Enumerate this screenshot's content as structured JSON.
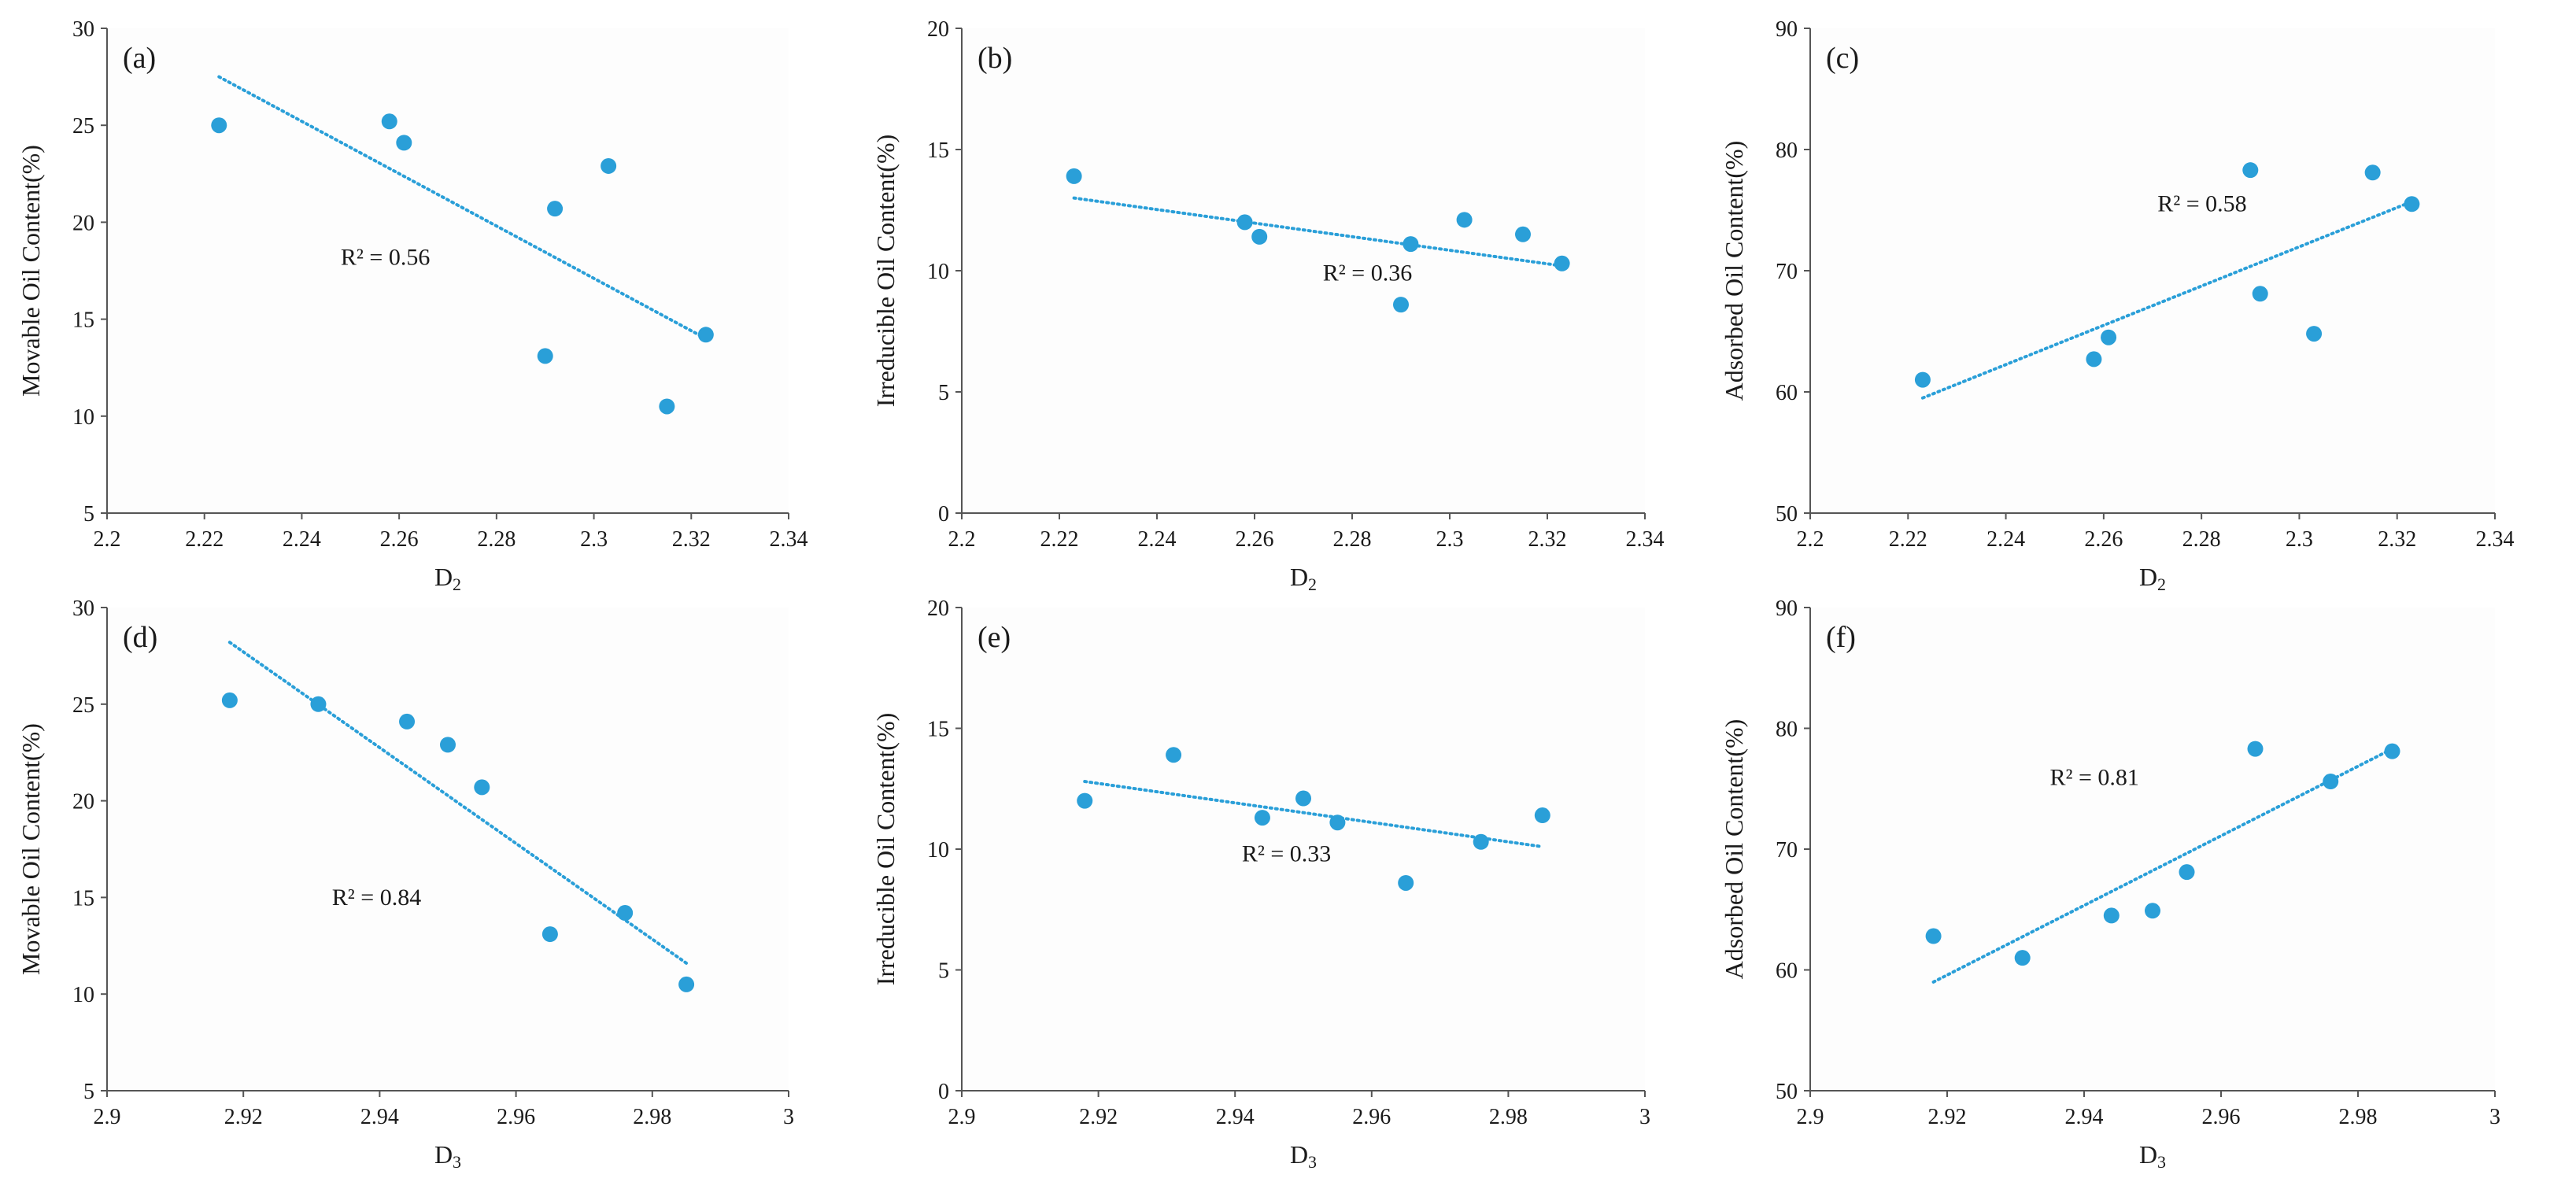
{
  "chart_data": [
    {
      "type": "scatter",
      "panel_label": "(a)",
      "xlabel": "D",
      "xlabel_subscript": "2",
      "ylabel": "Movable Oil Content(%)",
      "xlim": [
        2.2,
        2.34
      ],
      "ylim": [
        5,
        30
      ],
      "xticks": [
        2.2,
        2.22,
        2.24,
        2.26,
        2.28,
        2.3,
        2.32,
        2.34
      ],
      "yticks": [
        5,
        10,
        15,
        20,
        25,
        30
      ],
      "x_tick_labels": [
        "2.2",
        "2.22",
        "2.24",
        "2.26",
        "2.28",
        "2.3",
        "2.32",
        "2.34"
      ],
      "y_tick_labels": [
        "5",
        "10",
        "15",
        "20",
        "25",
        "30"
      ],
      "points": {
        "x": [
          2.223,
          2.258,
          2.261,
          2.29,
          2.292,
          2.303,
          2.315,
          2.323
        ],
        "y": [
          25.0,
          25.2,
          24.1,
          13.1,
          20.7,
          22.9,
          10.5,
          14.2
        ]
      },
      "trendline": {
        "x": [
          2.223,
          2.323
        ],
        "y": [
          27.5,
          14.0
        ]
      },
      "r2_text": "R² = 0.56",
      "r2_pos": [
        2.248,
        17.8
      ]
    },
    {
      "type": "scatter",
      "panel_label": "(b)",
      "xlabel": "D",
      "xlabel_subscript": "2",
      "ylabel": "Irreducible Oil Content(%)",
      "xlim": [
        2.2,
        2.34
      ],
      "ylim": [
        0,
        20
      ],
      "xticks": [
        2.2,
        2.22,
        2.24,
        2.26,
        2.28,
        2.3,
        2.32,
        2.34
      ],
      "yticks": [
        0,
        5,
        10,
        15,
        20
      ],
      "x_tick_labels": [
        "2.2",
        "2.22",
        "2.24",
        "2.26",
        "2.28",
        "2.3",
        "2.32",
        "2.34"
      ],
      "y_tick_labels": [
        "0",
        "5",
        "10",
        "15",
        "20"
      ],
      "points": {
        "x": [
          2.223,
          2.258,
          2.261,
          2.29,
          2.292,
          2.303,
          2.315,
          2.323
        ],
        "y": [
          13.9,
          12.0,
          11.4,
          8.6,
          11.1,
          12.1,
          11.5,
          10.3
        ]
      },
      "trendline": {
        "x": [
          2.223,
          2.323
        ],
        "y": [
          13.0,
          10.2
        ]
      },
      "r2_text": "R² = 0.36",
      "r2_pos": [
        2.274,
        9.6
      ]
    },
    {
      "type": "scatter",
      "panel_label": "(c)",
      "xlabel": "D",
      "xlabel_subscript": "2",
      "ylabel": "Adsorbed Oil Content(%)",
      "xlim": [
        2.2,
        2.34
      ],
      "ylim": [
        50,
        90
      ],
      "xticks": [
        2.2,
        2.22,
        2.24,
        2.26,
        2.28,
        2.3,
        2.32,
        2.34
      ],
      "yticks": [
        50,
        60,
        70,
        80,
        90
      ],
      "x_tick_labels": [
        "2.2",
        "2.22",
        "2.24",
        "2.26",
        "2.28",
        "2.3",
        "2.32",
        "2.34"
      ],
      "y_tick_labels": [
        "50",
        "60",
        "70",
        "80",
        "90"
      ],
      "points": {
        "x": [
          2.223,
          2.258,
          2.261,
          2.29,
          2.292,
          2.303,
          2.315,
          2.323
        ],
        "y": [
          61.0,
          62.7,
          64.5,
          78.3,
          68.1,
          64.8,
          78.1,
          75.5
        ]
      },
      "trendline": {
        "x": [
          2.223,
          2.323
        ],
        "y": [
          59.5,
          75.7
        ]
      },
      "r2_text": "R² = 0.58",
      "r2_pos": [
        2.271,
        74.9
      ]
    },
    {
      "type": "scatter",
      "panel_label": "(d)",
      "xlabel": "D",
      "xlabel_subscript": "3",
      "ylabel": "Movable Oil Content(%)",
      "xlim": [
        2.9,
        3.0
      ],
      "ylim": [
        5,
        30
      ],
      "xticks": [
        2.9,
        2.92,
        2.94,
        2.96,
        2.98,
        3.0
      ],
      "yticks": [
        5,
        10,
        15,
        20,
        25,
        30
      ],
      "x_tick_labels": [
        "2.9",
        "2.92",
        "2.94",
        "2.96",
        "2.98",
        "3"
      ],
      "y_tick_labels": [
        "5",
        "10",
        "15",
        "20",
        "25",
        "30"
      ],
      "points": {
        "x": [
          2.918,
          2.931,
          2.944,
          2.95,
          2.955,
          2.965,
          2.976,
          2.985
        ],
        "y": [
          25.2,
          25.0,
          24.1,
          22.9,
          20.7,
          13.1,
          14.2,
          10.5
        ]
      },
      "trendline": {
        "x": [
          2.918,
          2.985
        ],
        "y": [
          28.2,
          11.6
        ]
      },
      "r2_text": "R² = 0.84",
      "r2_pos": [
        2.933,
        14.6
      ]
    },
    {
      "type": "scatter",
      "panel_label": "(e)",
      "xlabel": "D",
      "xlabel_subscript": "3",
      "ylabel": "Irreducible Oil Content(%)",
      "xlim": [
        2.9,
        3.0
      ],
      "ylim": [
        0,
        20
      ],
      "xticks": [
        2.9,
        2.92,
        2.94,
        2.96,
        2.98,
        3.0
      ],
      "yticks": [
        0,
        5,
        10,
        15,
        20
      ],
      "x_tick_labels": [
        "2.9",
        "2.92",
        "2.94",
        "2.96",
        "2.98",
        "3"
      ],
      "y_tick_labels": [
        "0",
        "5",
        "10",
        "15",
        "20"
      ],
      "points": {
        "x": [
          2.918,
          2.931,
          2.944,
          2.95,
          2.955,
          2.965,
          2.976,
          2.985
        ],
        "y": [
          12.0,
          13.9,
          11.3,
          12.1,
          11.1,
          8.6,
          10.3,
          11.4
        ]
      },
      "trendline": {
        "x": [
          2.918,
          2.985
        ],
        "y": [
          12.8,
          10.1
        ]
      },
      "r2_text": "R² = 0.33",
      "r2_pos": [
        2.941,
        9.5
      ]
    },
    {
      "type": "scatter",
      "panel_label": "(f)",
      "xlabel": "D",
      "xlabel_subscript": "3",
      "ylabel": "Adsorbed Oil Content(%)",
      "xlim": [
        2.9,
        3.0
      ],
      "ylim": [
        50,
        90
      ],
      "xticks": [
        2.9,
        2.92,
        2.94,
        2.96,
        2.98,
        3.0
      ],
      "yticks": [
        50,
        60,
        70,
        80,
        90
      ],
      "x_tick_labels": [
        "2.9",
        "2.92",
        "2.94",
        "2.96",
        "2.98",
        "3"
      ],
      "y_tick_labels": [
        "50",
        "60",
        "70",
        "80",
        "90"
      ],
      "points": {
        "x": [
          2.918,
          2.931,
          2.944,
          2.95,
          2.955,
          2.965,
          2.976,
          2.985
        ],
        "y": [
          62.8,
          61.0,
          64.5,
          64.9,
          68.1,
          78.3,
          75.6,
          78.1
        ]
      },
      "trendline": {
        "x": [
          2.918,
          2.985
        ],
        "y": [
          59.0,
          78.3
        ]
      },
      "r2_text": "R² = 0.81",
      "r2_pos": [
        2.935,
        75.3
      ]
    }
  ],
  "colors": {
    "points": "#2a9fd8",
    "trendline": "#2a9fd8",
    "axis": "#555555",
    "text": "#1a1a1a"
  }
}
